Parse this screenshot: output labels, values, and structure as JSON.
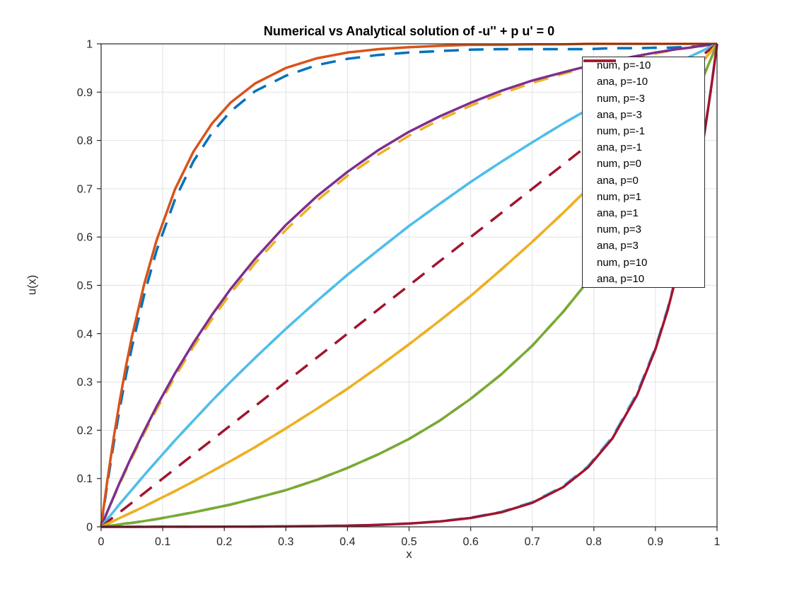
{
  "chart_data": {
    "type": "line",
    "title": "Numerical vs Analytical solution of -u'' + p u' = 0",
    "xlabel": "x",
    "ylabel": "u(x)",
    "xlim": [
      0,
      1
    ],
    "ylim": [
      0,
      1
    ],
    "grid": true,
    "legend_position": "northeast",
    "xticks": [
      0,
      0.1,
      0.2,
      0.3,
      0.4,
      0.5,
      0.6,
      0.7,
      0.8,
      0.9,
      1
    ],
    "xtick_labels": [
      "0",
      "0.1",
      "0.2",
      "0.3",
      "0.4",
      "0.5",
      "0.6",
      "0.7",
      "0.8",
      "0.9",
      "1"
    ],
    "yticks": [
      0,
      0.1,
      0.2,
      0.3,
      0.4,
      0.5,
      0.6,
      0.7,
      0.8,
      0.9,
      1
    ],
    "ytick_labels": [
      "0",
      "0.1",
      "0.2",
      "0.3",
      "0.4",
      "0.5",
      "0.6",
      "0.7",
      "0.8",
      "0.9",
      "1"
    ],
    "x": [
      0,
      0.005,
      0.01,
      0.02,
      0.03,
      0.04,
      0.05,
      0.07,
      0.09,
      0.12,
      0.15,
      0.18,
      0.21,
      0.25,
      0.3,
      0.35,
      0.4,
      0.45,
      0.5,
      0.55,
      0.6,
      0.65,
      0.7,
      0.75,
      0.79,
      0.83,
      0.87,
      0.9,
      0.92,
      0.94,
      0.955,
      0.97,
      0.98,
      0.99,
      0.995,
      1
    ],
    "series": [
      {
        "name": "num, p=-10",
        "p": -10,
        "kind": "numerical",
        "line_style": "dashed",
        "color": "#0072BD",
        "plotted": true,
        "y": [
          0,
          0.045,
          0.088,
          0.169,
          0.243,
          0.311,
          0.372,
          0.481,
          0.572,
          0.678,
          0.757,
          0.816,
          0.86,
          0.902,
          0.934,
          0.956,
          0.969,
          0.977,
          0.982,
          0.985,
          0.988,
          0.989,
          0.989,
          0.989,
          0.989,
          0.991,
          0.991,
          0.992,
          0.992,
          0.993,
          0.994,
          0.995,
          0.996,
          0.998,
          0.999,
          1
        ]
      },
      {
        "name": "ana, p=-10",
        "p": -10,
        "kind": "analytical",
        "line_style": "solid",
        "color": "#D95319",
        "plotted": true,
        "y": [
          0,
          0.049,
          0.095,
          0.181,
          0.259,
          0.33,
          0.394,
          0.503,
          0.593,
          0.699,
          0.777,
          0.835,
          0.878,
          0.918,
          0.95,
          0.97,
          0.982,
          0.989,
          0.993,
          0.996,
          0.998,
          0.998,
          0.999,
          0.999,
          1,
          1,
          1,
          1,
          1,
          1,
          1,
          1,
          1,
          1,
          1,
          1
        ]
      },
      {
        "name": "num, p=-3",
        "p": -3,
        "kind": "numerical",
        "line_style": "dashed",
        "color": "#EDB120",
        "plotted": true,
        "y": [
          0,
          0.015,
          0.03,
          0.06,
          0.088,
          0.116,
          0.143,
          0.194,
          0.243,
          0.311,
          0.373,
          0.43,
          0.483,
          0.546,
          0.615,
          0.675,
          0.727,
          0.771,
          0.81,
          0.843,
          0.872,
          0.897,
          0.919,
          0.938,
          0.951,
          0.963,
          0.973,
          0.98,
          0.985,
          0.989,
          0.992,
          0.995,
          0.996,
          0.998,
          0.999,
          1
        ]
      },
      {
        "name": "ana, p=-3",
        "p": -3,
        "kind": "analytical",
        "line_style": "solid",
        "color": "#7E2F8E",
        "plotted": true,
        "y": [
          0,
          0.016,
          0.031,
          0.061,
          0.091,
          0.119,
          0.147,
          0.199,
          0.249,
          0.318,
          0.381,
          0.439,
          0.492,
          0.555,
          0.625,
          0.684,
          0.735,
          0.78,
          0.818,
          0.85,
          0.878,
          0.903,
          0.924,
          0.941,
          0.954,
          0.965,
          0.975,
          0.982,
          0.986,
          0.99,
          0.992,
          0.995,
          0.997,
          0.998,
          0.999,
          1
        ]
      },
      {
        "name": "num, p=-1",
        "p": -1,
        "kind": "numerical",
        "line_style": "dashed",
        "color": "#77AC30",
        "plotted": true,
        "y": [
          0,
          0.008,
          0.016,
          0.031,
          0.047,
          0.062,
          0.077,
          0.107,
          0.136,
          0.179,
          0.22,
          0.261,
          0.3,
          0.35,
          0.41,
          0.467,
          0.522,
          0.573,
          0.623,
          0.669,
          0.714,
          0.756,
          0.796,
          0.835,
          0.864,
          0.892,
          0.919,
          0.939,
          0.952,
          0.964,
          0.973,
          0.982,
          0.988,
          0.994,
          0.997,
          1
        ]
      },
      {
        "name": "ana, p=-1",
        "p": -1,
        "kind": "analytical",
        "line_style": "solid",
        "color": "#4DBEEE",
        "plotted": true,
        "y": [
          0,
          0.008,
          0.016,
          0.031,
          0.047,
          0.062,
          0.077,
          0.107,
          0.136,
          0.179,
          0.22,
          0.261,
          0.3,
          0.35,
          0.41,
          0.467,
          0.522,
          0.573,
          0.623,
          0.669,
          0.714,
          0.756,
          0.796,
          0.835,
          0.864,
          0.892,
          0.919,
          0.939,
          0.952,
          0.964,
          0.973,
          0.982,
          0.988,
          0.994,
          0.997,
          1
        ]
      },
      {
        "name": "num, p=0",
        "p": 0,
        "kind": "numerical",
        "line_style": "dashed",
        "color": "#A2142F",
        "plotted": true,
        "y": [
          0,
          0.005,
          0.01,
          0.02,
          0.03,
          0.04,
          0.05,
          0.07,
          0.09,
          0.12,
          0.15,
          0.18,
          0.21,
          0.25,
          0.3,
          0.35,
          0.4,
          0.45,
          0.5,
          0.55,
          0.6,
          0.65,
          0.7,
          0.75,
          0.79,
          0.83,
          0.87,
          0.9,
          0.92,
          0.94,
          0.955,
          0.97,
          0.98,
          0.99,
          0.995,
          1
        ]
      },
      {
        "name": "ana, p=0",
        "p": 0,
        "kind": "analytical",
        "line_style": "solid",
        "color": "#0072BD",
        "plotted": false,
        "y": []
      },
      {
        "name": "num, p=1",
        "p": 1,
        "kind": "numerical",
        "line_style": "dashed",
        "color": "#D95319",
        "plotted": true,
        "y": [
          0,
          0.003,
          0.006,
          0.012,
          0.018,
          0.024,
          0.03,
          0.042,
          0.055,
          0.074,
          0.094,
          0.115,
          0.136,
          0.165,
          0.204,
          0.244,
          0.286,
          0.331,
          0.378,
          0.427,
          0.478,
          0.533,
          0.59,
          0.65,
          0.7,
          0.753,
          0.807,
          0.849,
          0.878,
          0.908,
          0.93,
          0.953,
          0.969,
          0.984,
          0.992,
          1
        ]
      },
      {
        "name": "ana, p=1",
        "p": 1,
        "kind": "analytical",
        "line_style": "solid",
        "color": "#EDB120",
        "plotted": true,
        "y": [
          0,
          0.003,
          0.006,
          0.012,
          0.018,
          0.024,
          0.03,
          0.042,
          0.055,
          0.074,
          0.094,
          0.115,
          0.136,
          0.165,
          0.204,
          0.244,
          0.286,
          0.331,
          0.378,
          0.427,
          0.478,
          0.533,
          0.59,
          0.65,
          0.7,
          0.753,
          0.807,
          0.849,
          0.878,
          0.908,
          0.93,
          0.953,
          0.969,
          0.984,
          0.992,
          1
        ]
      },
      {
        "name": "num, p=3",
        "p": 3,
        "kind": "numerical",
        "line_style": "dashed",
        "color": "#7E2F8E",
        "plotted": true,
        "y": [
          0,
          0.001,
          0.002,
          0.003,
          0.005,
          0.007,
          0.008,
          0.012,
          0.016,
          0.023,
          0.03,
          0.038,
          0.046,
          0.059,
          0.076,
          0.097,
          0.122,
          0.15,
          0.182,
          0.22,
          0.265,
          0.316,
          0.375,
          0.445,
          0.508,
          0.58,
          0.66,
          0.727,
          0.776,
          0.827,
          0.867,
          0.909,
          0.939,
          0.969,
          0.984,
          1
        ]
      },
      {
        "name": "ana, p=3",
        "p": 3,
        "kind": "analytical",
        "line_style": "solid",
        "color": "#77AC30",
        "plotted": true,
        "y": [
          0,
          0.001,
          0.002,
          0.003,
          0.005,
          0.007,
          0.008,
          0.012,
          0.016,
          0.023,
          0.03,
          0.038,
          0.046,
          0.059,
          0.076,
          0.097,
          0.122,
          0.15,
          0.182,
          0.22,
          0.265,
          0.316,
          0.375,
          0.445,
          0.508,
          0.58,
          0.66,
          0.727,
          0.776,
          0.827,
          0.867,
          0.909,
          0.939,
          0.969,
          0.984,
          1
        ]
      },
      {
        "name": "num, p=10",
        "p": 10,
        "kind": "numerical",
        "line_style": "dashed",
        "color": "#4DBEEE",
        "plotted": true,
        "y": [
          0,
          0,
          0,
          0,
          0,
          0,
          0,
          0.0001,
          0.0001,
          0.0002,
          0.0003,
          0.0004,
          0.0005,
          0.0007,
          0.0009,
          0.0016,
          0.0026,
          0.0043,
          0.007,
          0.0116,
          0.019,
          0.0312,
          0.0513,
          0.0841,
          0.1251,
          0.1861,
          0.2768,
          0.3717,
          0.4531,
          0.5521,
          0.6406,
          0.7434,
          0.8207,
          0.9062,
          0.9521,
          1
        ]
      },
      {
        "name": "ana, p=10",
        "p": 10,
        "kind": "analytical",
        "line_style": "solid",
        "color": "#A2142F",
        "plotted": true,
        "y": [
          0,
          0,
          0,
          0,
          0,
          0,
          0,
          0,
          0.0001,
          0.0001,
          0.0002,
          0.0002,
          0.0003,
          0.0005,
          0.0009,
          0.0015,
          0.0024,
          0.004,
          0.0067,
          0.0111,
          0.0183,
          0.0302,
          0.0497,
          0.082,
          0.1224,
          0.1827,
          0.2725,
          0.3679,
          0.4493,
          0.5488,
          0.6377,
          0.7408,
          0.8187,
          0.9048,
          0.9512,
          1
        ]
      }
    ]
  }
}
